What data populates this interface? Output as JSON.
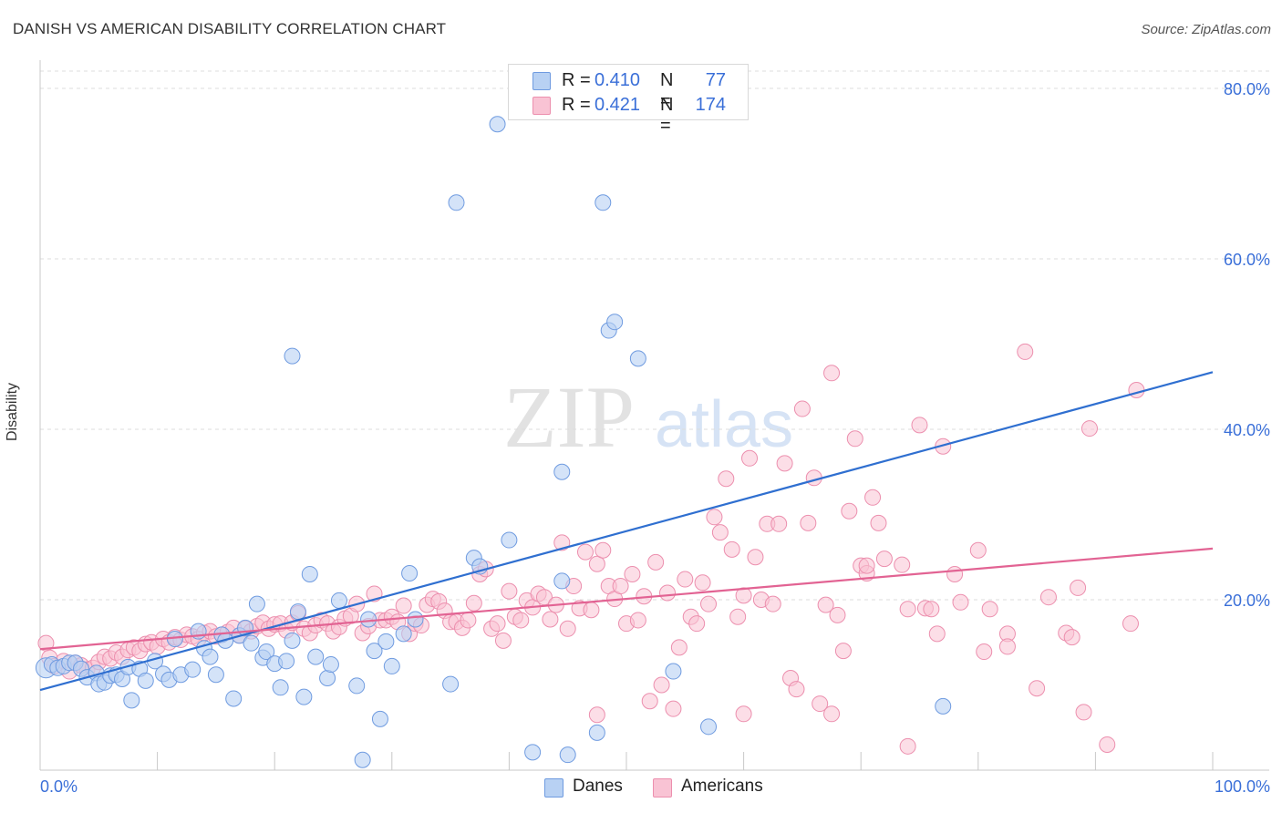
{
  "title": "DANISH VS AMERICAN DISABILITY CORRELATION CHART",
  "source": "Source: ZipAtlas.com",
  "watermark": {
    "zip": "ZIP",
    "atlas": "atlas"
  },
  "legend_top": [
    {
      "r_label": "R =",
      "r_value": "0.410",
      "n_label": "N =",
      "n_value": "77"
    },
    {
      "r_label": "R =",
      "r_value": "0.421",
      "n_label": "N =",
      "n_value": "174"
    }
  ],
  "legend_bottom": [
    {
      "label": "Danes"
    },
    {
      "label": "Americans"
    }
  ],
  "colors": {
    "danes_fill": "#b8d1f3",
    "danes_stroke": "#6f9be0",
    "danes_line": "#2f6fd0",
    "americans_fill": "#f9c3d4",
    "americans_stroke": "#ec8fae",
    "americans_line": "#e26393",
    "tick_label": "#3a6fd8",
    "grid": "#dcdcdc"
  },
  "chart_data": {
    "type": "scatter",
    "title": "DANISH VS AMERICAN DISABILITY CORRELATION CHART",
    "xlabel": "",
    "ylabel": "Disability",
    "xlim": [
      0,
      100
    ],
    "ylim": [
      0,
      80
    ],
    "x_tick_labels": [
      "0.0%",
      "100.0%"
    ],
    "y_ticks": [
      20,
      40,
      60,
      80
    ],
    "y_tick_labels": [
      "20.0%",
      "40.0%",
      "60.0%",
      "80.0%"
    ],
    "grid": "horizontal dashed",
    "legend_position": "top-center",
    "series": [
      {
        "name": "Danes",
        "R": 0.41,
        "N": 77,
        "trend": {
          "x": [
            0,
            100
          ],
          "y": [
            9.4,
            46.7
          ]
        },
        "points": [
          [
            0.5,
            12.0
          ],
          [
            1.0,
            12.4
          ],
          [
            1.5,
            12.0
          ],
          [
            2.0,
            12.2
          ],
          [
            2.5,
            12.6
          ],
          [
            3.0,
            12.6
          ],
          [
            3.5,
            11.9
          ],
          [
            4.0,
            10.9
          ],
          [
            4.8,
            11.4
          ],
          [
            5.0,
            10.1
          ],
          [
            5.5,
            10.3
          ],
          [
            6.0,
            11.1
          ],
          [
            6.5,
            11.2
          ],
          [
            7.0,
            10.7
          ],
          [
            7.5,
            12.1
          ],
          [
            7.8,
            8.2
          ],
          [
            8.5,
            11.9
          ],
          [
            9.0,
            10.5
          ],
          [
            9.8,
            12.8
          ],
          [
            10.5,
            11.3
          ],
          [
            11.0,
            10.6
          ],
          [
            11.5,
            15.4
          ],
          [
            12.0,
            11.2
          ],
          [
            13.0,
            11.8
          ],
          [
            13.5,
            16.3
          ],
          [
            14.0,
            14.3
          ],
          [
            14.5,
            13.3
          ],
          [
            15.0,
            11.2
          ],
          [
            15.5,
            15.9
          ],
          [
            15.8,
            15.2
          ],
          [
            16.5,
            8.4
          ],
          [
            17.0,
            15.8
          ],
          [
            17.5,
            16.7
          ],
          [
            18.0,
            14.9
          ],
          [
            18.5,
            19.5
          ],
          [
            19.0,
            13.2
          ],
          [
            19.3,
            13.9
          ],
          [
            20.0,
            12.5
          ],
          [
            20.5,
            9.7
          ],
          [
            21.0,
            12.8
          ],
          [
            21.5,
            15.2
          ],
          [
            22.0,
            18.6
          ],
          [
            22.5,
            8.6
          ],
          [
            23.0,
            23.0
          ],
          [
            23.5,
            13.3
          ],
          [
            24.5,
            10.8
          ],
          [
            24.8,
            12.4
          ],
          [
            25.5,
            19.9
          ],
          [
            27.0,
            9.9
          ],
          [
            27.5,
            1.2
          ],
          [
            28.0,
            17.7
          ],
          [
            28.5,
            14.0
          ],
          [
            29.0,
            6.0
          ],
          [
            29.5,
            15.1
          ],
          [
            30.0,
            12.2
          ],
          [
            31.0,
            16.0
          ],
          [
            31.5,
            23.1
          ],
          [
            32.0,
            17.7
          ],
          [
            35.0,
            10.1
          ],
          [
            35.5,
            66.6
          ],
          [
            37.0,
            24.9
          ],
          [
            37.5,
            23.9
          ],
          [
            39.0,
            75.8
          ],
          [
            42.0,
            2.1
          ],
          [
            44.5,
            35.0
          ],
          [
            44.5,
            22.2
          ],
          [
            45.0,
            1.8
          ],
          [
            47.5,
            4.4
          ],
          [
            48.0,
            66.6
          ],
          [
            48.5,
            51.6
          ],
          [
            49.0,
            52.6
          ],
          [
            51.0,
            48.3
          ],
          [
            54.0,
            11.6
          ],
          [
            57.0,
            5.1
          ],
          [
            77.0,
            7.5
          ],
          [
            21.5,
            48.6
          ],
          [
            40.0,
            27.0
          ]
        ]
      },
      {
        "name": "Americans",
        "R": 0.421,
        "N": 174,
        "trend": {
          "x": [
            0,
            100
          ],
          "y": [
            14.2,
            26.0
          ]
        },
        "points": [
          [
            0.5,
            14.9
          ],
          [
            0.8,
            13.2
          ],
          [
            1.2,
            12.2
          ],
          [
            2.0,
            12.8
          ],
          [
            2.5,
            11.6
          ],
          [
            3.0,
            12.6
          ],
          [
            3.5,
            12.3
          ],
          [
            4.0,
            11.8
          ],
          [
            4.5,
            12.0
          ],
          [
            5.0,
            12.7
          ],
          [
            5.5,
            13.3
          ],
          [
            6.0,
            13.1
          ],
          [
            6.5,
            13.8
          ],
          [
            7.0,
            13.3
          ],
          [
            7.5,
            14.1
          ],
          [
            8.0,
            14.4
          ],
          [
            8.5,
            14.0
          ],
          [
            9.0,
            14.8
          ],
          [
            9.5,
            15.0
          ],
          [
            10.0,
            14.5
          ],
          [
            10.5,
            15.4
          ],
          [
            11.0,
            15.0
          ],
          [
            11.5,
            15.6
          ],
          [
            12.0,
            15.3
          ],
          [
            12.5,
            15.9
          ],
          [
            13.0,
            15.7
          ],
          [
            13.5,
            15.4
          ],
          [
            14.0,
            16.1
          ],
          [
            14.5,
            16.3
          ],
          [
            15.0,
            15.7
          ],
          [
            15.5,
            15.9
          ],
          [
            16.0,
            16.2
          ],
          [
            16.5,
            16.7
          ],
          [
            17.0,
            15.8
          ],
          [
            17.5,
            16.6
          ],
          [
            18.0,
            16.3
          ],
          [
            18.5,
            16.9
          ],
          [
            19.0,
            17.3
          ],
          [
            19.5,
            16.6
          ],
          [
            20.0,
            17.1
          ],
          [
            20.5,
            17.2
          ],
          [
            21.0,
            16.4
          ],
          [
            21.5,
            17.3
          ],
          [
            22.0,
            18.4
          ],
          [
            22.5,
            16.6
          ],
          [
            23.0,
            16.1
          ],
          [
            23.5,
            17.0
          ],
          [
            24.0,
            17.6
          ],
          [
            24.5,
            17.2
          ],
          [
            25.0,
            16.3
          ],
          [
            25.5,
            16.8
          ],
          [
            26.0,
            17.8
          ],
          [
            26.5,
            18.1
          ],
          [
            27.0,
            19.5
          ],
          [
            27.5,
            16.1
          ],
          [
            28.0,
            16.9
          ],
          [
            28.5,
            20.7
          ],
          [
            29.0,
            17.6
          ],
          [
            29.5,
            17.6
          ],
          [
            30.0,
            18.0
          ],
          [
            30.5,
            17.4
          ],
          [
            31.0,
            19.3
          ],
          [
            31.5,
            16.0
          ],
          [
            32.0,
            17.2
          ],
          [
            32.5,
            17.0
          ],
          [
            33.0,
            19.4
          ],
          [
            33.5,
            20.1
          ],
          [
            34.0,
            19.8
          ],
          [
            34.5,
            18.7
          ],
          [
            35.0,
            17.4
          ],
          [
            35.5,
            17.4
          ],
          [
            36.0,
            16.7
          ],
          [
            36.5,
            17.6
          ],
          [
            37.0,
            19.6
          ],
          [
            37.5,
            23.0
          ],
          [
            38.0,
            23.6
          ],
          [
            38.5,
            16.6
          ],
          [
            39.0,
            17.2
          ],
          [
            39.5,
            15.2
          ],
          [
            40.0,
            21.0
          ],
          [
            40.5,
            18.0
          ],
          [
            41.0,
            17.6
          ],
          [
            41.5,
            19.9
          ],
          [
            42.0,
            19.1
          ],
          [
            42.5,
            20.7
          ],
          [
            43.0,
            20.3
          ],
          [
            43.5,
            17.7
          ],
          [
            44.0,
            19.4
          ],
          [
            44.5,
            26.7
          ],
          [
            45.0,
            16.6
          ],
          [
            45.5,
            21.6
          ],
          [
            46.0,
            19.0
          ],
          [
            46.5,
            25.6
          ],
          [
            47.0,
            18.8
          ],
          [
            47.5,
            24.2
          ],
          [
            48.0,
            25.8
          ],
          [
            48.5,
            21.6
          ],
          [
            49.0,
            20.1
          ],
          [
            49.5,
            21.6
          ],
          [
            50.0,
            17.2
          ],
          [
            50.5,
            23.0
          ],
          [
            51.0,
            17.6
          ],
          [
            51.5,
            20.4
          ],
          [
            52.0,
            8.1
          ],
          [
            52.5,
            24.4
          ],
          [
            53.0,
            10.0
          ],
          [
            53.5,
            20.8
          ],
          [
            54.0,
            7.2
          ],
          [
            54.5,
            14.4
          ],
          [
            55.0,
            22.4
          ],
          [
            55.5,
            18.0
          ],
          [
            56.0,
            17.2
          ],
          [
            56.5,
            22.0
          ],
          [
            57.0,
            19.5
          ],
          [
            57.5,
            29.7
          ],
          [
            58.0,
            27.9
          ],
          [
            58.5,
            34.2
          ],
          [
            59.0,
            25.9
          ],
          [
            59.5,
            18.0
          ],
          [
            60.0,
            20.5
          ],
          [
            60.5,
            36.6
          ],
          [
            61.0,
            25.0
          ],
          [
            61.5,
            20.0
          ],
          [
            62.0,
            28.9
          ],
          [
            62.5,
            19.5
          ],
          [
            63.0,
            28.9
          ],
          [
            63.5,
            36.0
          ],
          [
            64.0,
            10.8
          ],
          [
            64.5,
            9.5
          ],
          [
            65.0,
            42.4
          ],
          [
            65.5,
            29.0
          ],
          [
            66.0,
            34.3
          ],
          [
            66.5,
            7.8
          ],
          [
            67.0,
            19.4
          ],
          [
            67.5,
            6.6
          ],
          [
            68.0,
            18.2
          ],
          [
            68.5,
            14.0
          ],
          [
            69.0,
            30.4
          ],
          [
            69.5,
            38.9
          ],
          [
            70.0,
            24.0
          ],
          [
            70.5,
            23.1
          ],
          [
            71.0,
            32.0
          ],
          [
            71.5,
            29.0
          ],
          [
            72.0,
            24.8
          ],
          [
            73.5,
            24.1
          ],
          [
            74.0,
            18.9
          ],
          [
            75.0,
            40.5
          ],
          [
            75.5,
            19.0
          ],
          [
            76.0,
            18.9
          ],
          [
            76.5,
            16.0
          ],
          [
            77.0,
            38.0
          ],
          [
            78.0,
            23.0
          ],
          [
            78.5,
            19.7
          ],
          [
            80.0,
            25.8
          ],
          [
            80.5,
            13.9
          ],
          [
            81.0,
            18.9
          ],
          [
            82.5,
            16.0
          ],
          [
            82.5,
            14.5
          ],
          [
            84.0,
            49.1
          ],
          [
            85.0,
            9.6
          ],
          [
            86.0,
            20.3
          ],
          [
            87.5,
            16.1
          ],
          [
            88.0,
            15.6
          ],
          [
            88.5,
            21.4
          ],
          [
            89.0,
            6.8
          ],
          [
            89.5,
            40.1
          ],
          [
            91.0,
            3.0
          ],
          [
            93.0,
            17.2
          ],
          [
            93.5,
            44.6
          ],
          [
            74.0,
            2.8
          ],
          [
            67.5,
            46.6
          ],
          [
            60.0,
            6.6
          ],
          [
            70.5,
            24.0
          ],
          [
            47.5,
            6.5
          ]
        ]
      }
    ]
  }
}
